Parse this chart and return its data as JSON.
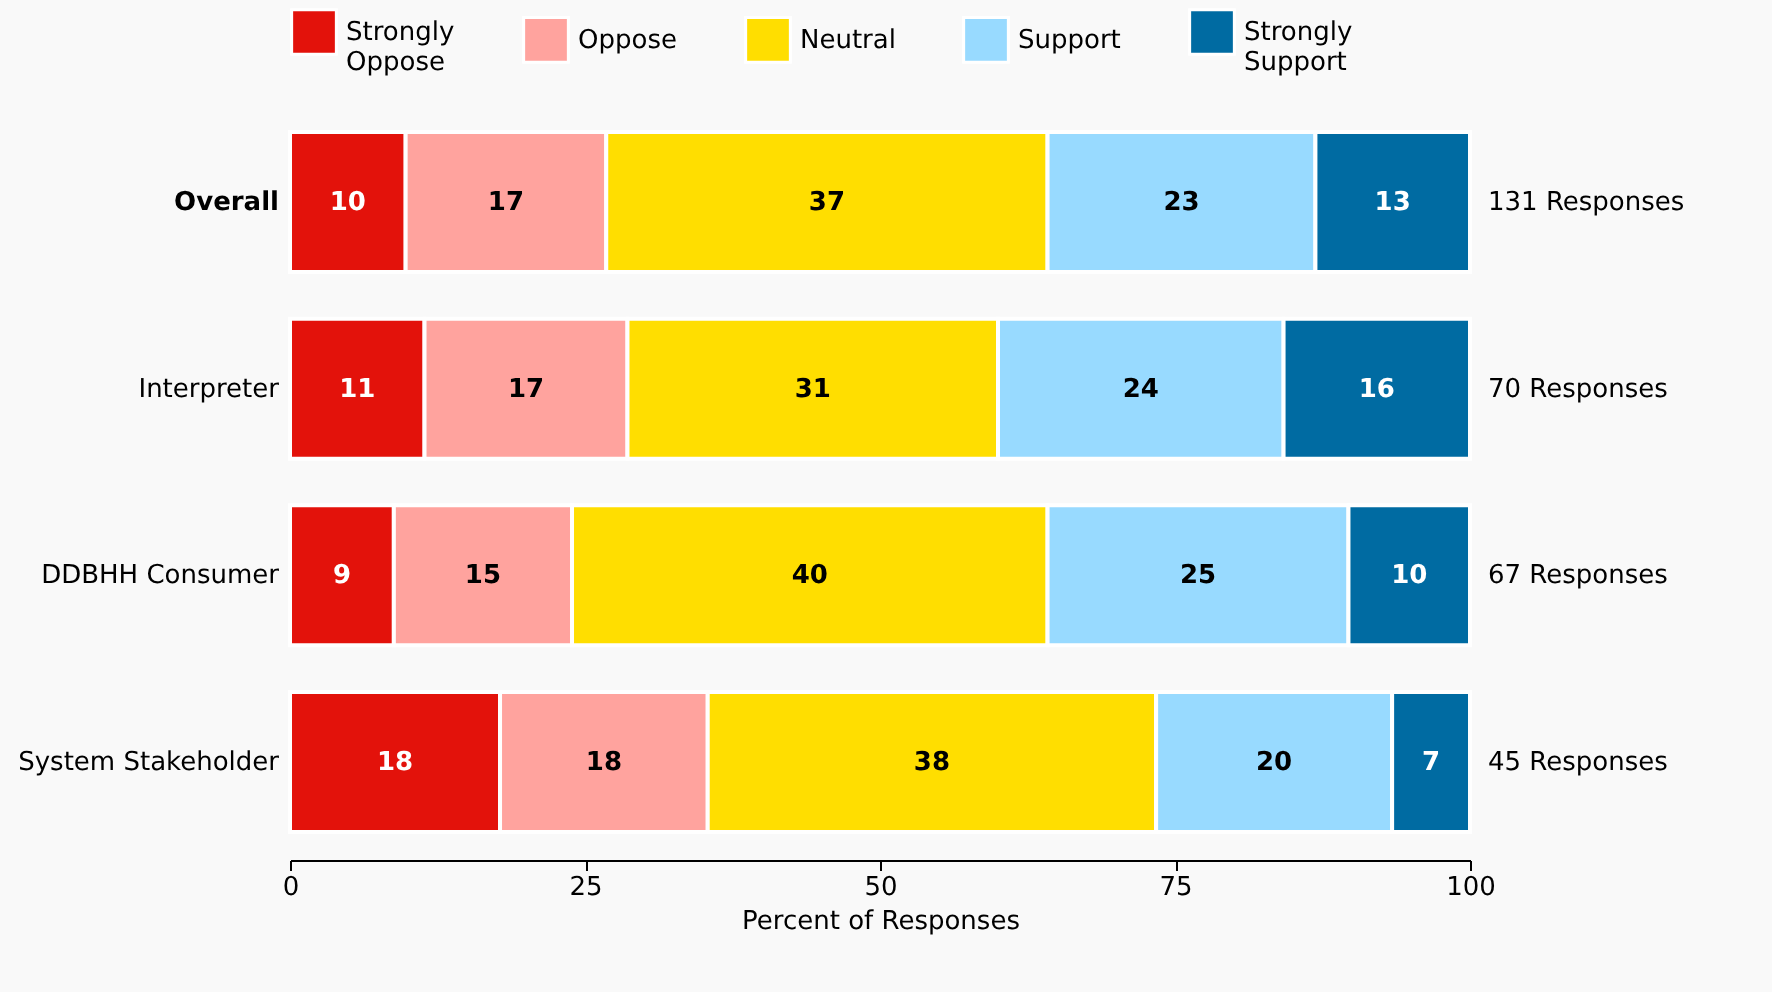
{
  "chart_data": {
    "type": "bar",
    "orientation": "horizontal",
    "stacked": true,
    "xlabel": "Percent of Responses",
    "categories": [
      "Overall",
      "Interpreter",
      "DDBHH Consumer",
      "System Stakeholder"
    ],
    "series": [
      {
        "name": "Strongly Oppose",
        "color": "#e3120b",
        "values": [
          9.8,
          11.4,
          8.8,
          17.8
        ],
        "value_labels": [
          "10",
          "11",
          "9",
          "18"
        ]
      },
      {
        "name": "Oppose",
        "color": "#ffa39e",
        "values": [
          17.0,
          17.2,
          15.1,
          17.6
        ],
        "value_labels": [
          "17",
          "17",
          "15",
          "18"
        ]
      },
      {
        "name": "Neutral",
        "color": "#ffde00",
        "values": [
          37.4,
          31.4,
          40.3,
          38.0
        ],
        "value_labels": [
          "37",
          "31",
          "40",
          "38"
        ]
      },
      {
        "name": "Support",
        "color": "#98daff",
        "values": [
          22.7,
          24.2,
          25.5,
          20.0
        ],
        "value_labels": [
          "23",
          "24",
          "25",
          "20"
        ]
      },
      {
        "name": "Strongly Support",
        "color": "#006ba2",
        "values": [
          13.1,
          15.8,
          10.3,
          6.6
        ],
        "value_labels": [
          "13",
          "16",
          "10",
          "7"
        ]
      }
    ],
    "xlim": [
      0,
      100
    ],
    "xticks": [
      0,
      25,
      50,
      75,
      100
    ],
    "grid": false,
    "legend": "top",
    "annotations": [
      "131 Responses",
      "70 Responses",
      "67 Responses",
      "45 Responses"
    ]
  }
}
